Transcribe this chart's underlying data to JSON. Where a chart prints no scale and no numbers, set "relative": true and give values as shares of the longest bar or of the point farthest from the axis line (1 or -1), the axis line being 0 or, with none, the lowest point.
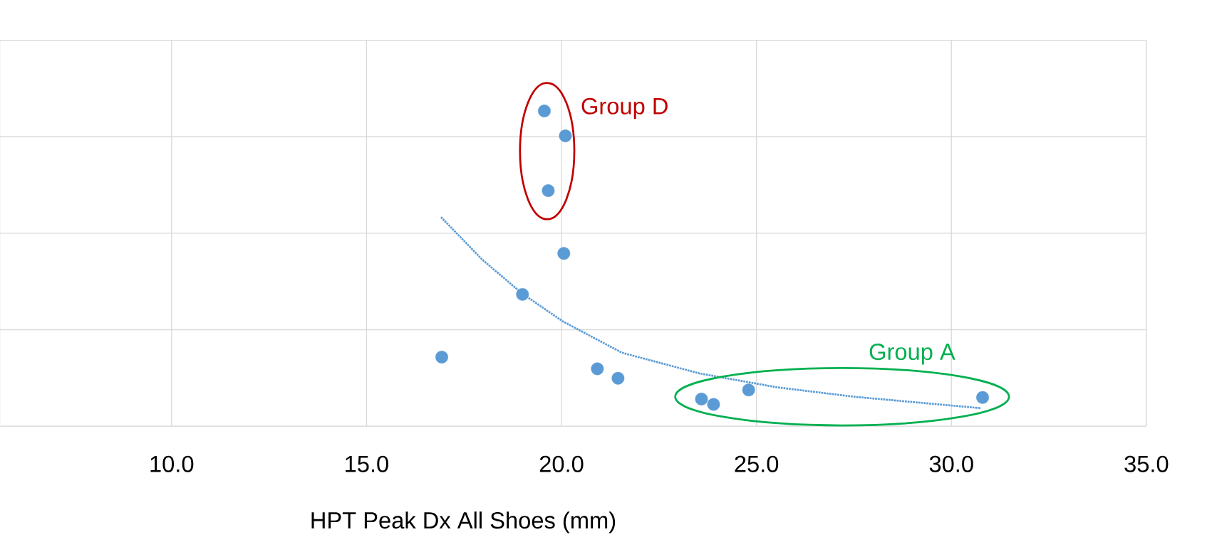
{
  "chart_data": {
    "type": "scatter",
    "xlabel": "HPT Peak Dx All Shoes (mm)",
    "relative": true,
    "grid": true,
    "xlim": [
      5.6,
      35.0
    ],
    "xticks": [
      {
        "value": 10,
        "label": "10.0"
      },
      {
        "value": 15,
        "label": "15.0"
      },
      {
        "value": 20,
        "label": "20.0"
      },
      {
        "value": 25,
        "label": "25.0"
      },
      {
        "value": 30,
        "label": "30.0"
      },
      {
        "value": 35,
        "label": "35.0"
      }
    ],
    "series": [
      {
        "color": "#5b9bd5",
        "marker": "circle",
        "x": [
          19.56,
          20.1,
          19.66,
          20.06,
          19.0,
          16.93,
          20.92,
          21.45,
          24.8,
          23.59,
          23.9,
          30.8
        ],
        "values": [
          1.0,
          0.921,
          0.747,
          0.548,
          0.418,
          0.219,
          0.182,
          0.152,
          0.115,
          0.086,
          0.069,
          0.091
        ]
      },
      {
        "type": "line",
        "color": "#5b9bd5",
        "marker": "none",
        "line_style": "dotted",
        "x": [
          16.91,
          17.97,
          19.0,
          20.04,
          21.55,
          23.55,
          25.54,
          27.53,
          30.76
        ],
        "values": [
          0.663,
          0.528,
          0.42,
          0.332,
          0.233,
          0.167,
          0.123,
          0.093,
          0.057
        ]
      }
    ],
    "annotations": [
      "Group D",
      "Group A"
    ]
  }
}
